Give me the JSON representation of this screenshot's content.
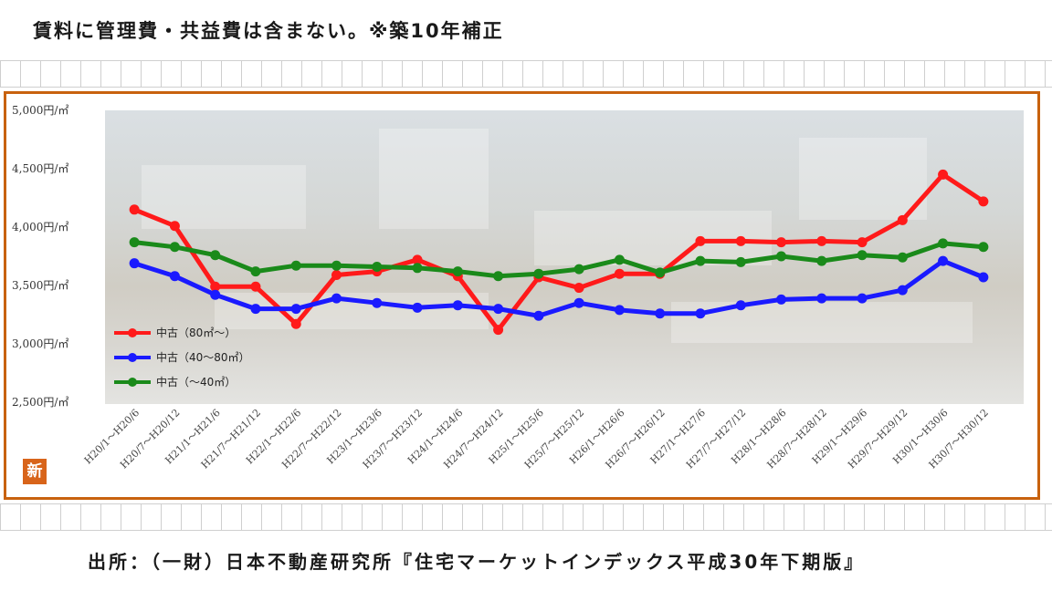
{
  "header": {
    "note": "賃料に管理費・共益費は含まない。※築10年補正"
  },
  "footer": {
    "source": "出所：（一財）日本不動産研究所『住宅マーケットインデックス平成30年下期版』"
  },
  "badge_text": "新",
  "chart_data": {
    "type": "line",
    "title": "",
    "xlabel": "",
    "ylabel": "",
    "ylim": [
      2500,
      5000
    ],
    "yticks": [
      5000,
      4500,
      4000,
      3500,
      3000,
      2500
    ],
    "ytick_labels": [
      "5,000円/㎡",
      "4,500円/㎡",
      "4,000円/㎡",
      "3,500円/㎡",
      "3,000円/㎡",
      "2,500円/㎡"
    ],
    "categories": [
      "H20/1～H20/6",
      "H20/7～H20/12",
      "H21/1～H21/6",
      "H21/7～H21/12",
      "H22/1～H22/6",
      "H22/7～H22/12",
      "H23/1～H23/6",
      "H23/7～H23/12",
      "H24/1～H24/6",
      "H24/7～H24/12",
      "H25/1～H25/6",
      "H25/7～H25/12",
      "H26/1～H26/6",
      "H26/7～H26/12",
      "H27/1～H27/6",
      "H27/7～H27/12",
      "H28/1～H28/6",
      "H28/7～H28/12",
      "H29/1～H29/6",
      "H29/7～H29/12",
      "H30/1～H30/6",
      "H30/7～H30/12"
    ],
    "series": [
      {
        "name": "中古（80㎡～）",
        "color": "#ff1a1a",
        "values": [
          4150,
          4010,
          3490,
          3490,
          3170,
          3590,
          3620,
          3720,
          3580,
          3120,
          3570,
          3480,
          3600,
          3600,
          3880,
          3880,
          3870,
          3880,
          3870,
          4060,
          4450,
          4220
        ]
      },
      {
        "name": "中古（40～80㎡）",
        "color": "#1a1aff",
        "values": [
          3690,
          3580,
          3420,
          3300,
          3300,
          3390,
          3350,
          3310,
          3330,
          3300,
          3240,
          3350,
          3290,
          3260,
          3260,
          3330,
          3380,
          3390,
          3390,
          3460,
          3710,
          3570
        ]
      },
      {
        "name": "中古（～40㎡）",
        "color": "#1a8a1a",
        "values": [
          3870,
          3830,
          3760,
          3620,
          3670,
          3670,
          3660,
          3650,
          3620,
          3580,
          3600,
          3640,
          3720,
          3610,
          3710,
          3700,
          3750,
          3710,
          3760,
          3740,
          3860,
          3830
        ]
      }
    ],
    "legend_position": "lower-left",
    "grid": false
  }
}
